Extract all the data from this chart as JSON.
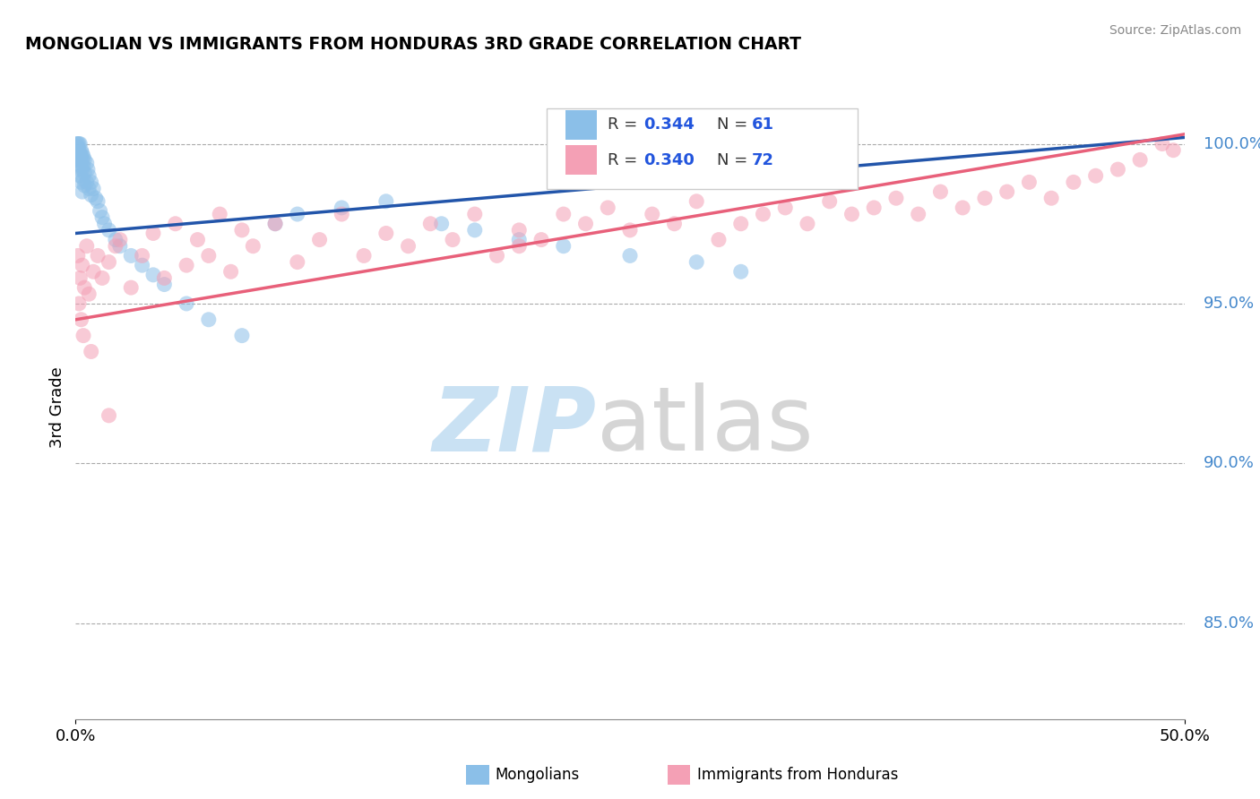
{
  "title": "MONGOLIAN VS IMMIGRANTS FROM HONDURAS 3RD GRADE CORRELATION CHART",
  "source": "Source: ZipAtlas.com",
  "ylabel": "3rd Grade",
  "xlim": [
    0.0,
    50.0
  ],
  "ylim": [
    82.0,
    101.5
  ],
  "x_ticks": [
    0.0,
    50.0
  ],
  "x_tick_labels": [
    "0.0%",
    "50.0%"
  ],
  "y_ticks": [
    85.0,
    90.0,
    95.0,
    100.0
  ],
  "y_tick_labels": [
    "85.0%",
    "90.0%",
    "95.0%",
    "100.0%"
  ],
  "color_mongolian": "#8bbfe8",
  "color_honduras": "#f4a0b5",
  "color_line_mongolian": "#2255aa",
  "color_line_honduras": "#e8607a",
  "mongolian_x": [
    0.05,
    0.05,
    0.1,
    0.1,
    0.1,
    0.15,
    0.15,
    0.15,
    0.15,
    0.2,
    0.2,
    0.2,
    0.2,
    0.25,
    0.25,
    0.25,
    0.25,
    0.3,
    0.3,
    0.3,
    0.3,
    0.35,
    0.35,
    0.35,
    0.4,
    0.4,
    0.4,
    0.5,
    0.5,
    0.55,
    0.6,
    0.6,
    0.7,
    0.7,
    0.8,
    0.9,
    1.0,
    1.1,
    1.2,
    1.3,
    1.5,
    1.8,
    2.0,
    2.5,
    3.0,
    3.5,
    4.0,
    5.0,
    6.0,
    7.5,
    9.0,
    10.0,
    12.0,
    14.0,
    16.5,
    18.0,
    20.0,
    22.0,
    25.0,
    28.0,
    30.0
  ],
  "mongolian_y": [
    100.0,
    99.8,
    100.0,
    99.9,
    99.5,
    100.0,
    99.8,
    99.6,
    99.2,
    100.0,
    99.7,
    99.5,
    99.0,
    99.8,
    99.6,
    99.3,
    98.8,
    99.7,
    99.5,
    99.2,
    98.5,
    99.6,
    99.3,
    98.9,
    99.5,
    99.1,
    98.7,
    99.4,
    98.8,
    99.2,
    99.0,
    98.6,
    98.8,
    98.4,
    98.6,
    98.3,
    98.2,
    97.9,
    97.7,
    97.5,
    97.3,
    97.0,
    96.8,
    96.5,
    96.2,
    95.9,
    95.6,
    95.0,
    94.5,
    94.0,
    97.5,
    97.8,
    98.0,
    98.2,
    97.5,
    97.3,
    97.0,
    96.8,
    96.5,
    96.3,
    96.0
  ],
  "honduras_x": [
    0.1,
    0.2,
    0.3,
    0.4,
    0.5,
    0.6,
    0.8,
    1.0,
    1.2,
    1.5,
    1.8,
    2.0,
    2.5,
    3.0,
    3.5,
    4.0,
    4.5,
    5.0,
    5.5,
    6.0,
    6.5,
    7.0,
    7.5,
    8.0,
    9.0,
    10.0,
    11.0,
    12.0,
    13.0,
    14.0,
    15.0,
    16.0,
    17.0,
    18.0,
    19.0,
    20.0,
    21.0,
    22.0,
    23.0,
    24.0,
    25.0,
    26.0,
    27.0,
    28.0,
    29.0,
    30.0,
    31.0,
    32.0,
    33.0,
    34.0,
    35.0,
    36.0,
    37.0,
    38.0,
    39.0,
    40.0,
    41.0,
    42.0,
    43.0,
    44.0,
    45.0,
    46.0,
    47.0,
    48.0,
    49.0,
    49.5,
    0.15,
    0.25,
    0.35,
    0.7,
    1.5,
    20.0
  ],
  "honduras_y": [
    96.5,
    95.8,
    96.2,
    95.5,
    96.8,
    95.3,
    96.0,
    96.5,
    95.8,
    96.3,
    96.8,
    97.0,
    95.5,
    96.5,
    97.2,
    95.8,
    97.5,
    96.2,
    97.0,
    96.5,
    97.8,
    96.0,
    97.3,
    96.8,
    97.5,
    96.3,
    97.0,
    97.8,
    96.5,
    97.2,
    96.8,
    97.5,
    97.0,
    97.8,
    96.5,
    97.3,
    97.0,
    97.8,
    97.5,
    98.0,
    97.3,
    97.8,
    97.5,
    98.2,
    97.0,
    97.5,
    97.8,
    98.0,
    97.5,
    98.2,
    97.8,
    98.0,
    98.3,
    97.8,
    98.5,
    98.0,
    98.3,
    98.5,
    98.8,
    98.3,
    98.8,
    99.0,
    99.2,
    99.5,
    100.0,
    99.8,
    95.0,
    94.5,
    94.0,
    93.5,
    91.5,
    96.8
  ],
  "bottom_label_mongolians": "Mongolians",
  "bottom_label_honduras": "Immigrants from Honduras",
  "watermark_zip": "ZIP",
  "watermark_atlas": "atlas"
}
